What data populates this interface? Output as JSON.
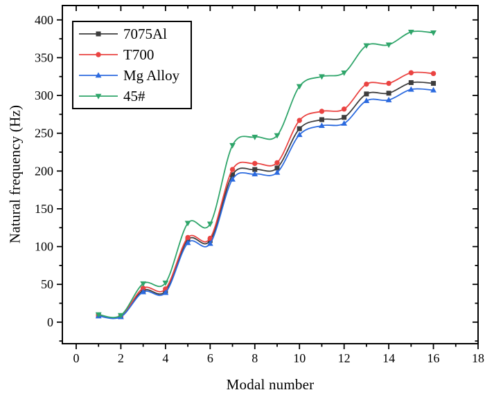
{
  "chart_data": {
    "type": "line",
    "title": "",
    "xlabel": "Modal number",
    "ylabel": "Natural frequency (Hz)",
    "line_style": "smooth-spline",
    "grid": false,
    "axis_color": "#000000",
    "legend": {
      "position": "top-left",
      "border": true
    },
    "x": [
      1,
      2,
      3,
      4,
      5,
      6,
      7,
      8,
      9,
      10,
      11,
      12,
      13,
      14,
      15,
      16
    ],
    "series": [
      {
        "name": "7075Al",
        "color": "#3d3d3d",
        "marker": "square",
        "values": [
          9,
          8,
          42,
          41,
          109,
          108,
          195,
          202,
          204,
          256,
          268,
          271,
          302,
          303,
          317,
          316
        ]
      },
      {
        "name": "T700",
        "color": "#ea4341",
        "marker": "circle",
        "values": [
          9,
          8,
          45,
          44,
          112,
          111,
          202,
          210,
          211,
          267,
          279,
          282,
          315,
          316,
          330,
          329
        ]
      },
      {
        "name": "Mg Alloy",
        "color": "#2b6adf",
        "marker": "triangle-up",
        "values": [
          8,
          7,
          40,
          39,
          105,
          104,
          189,
          196,
          198,
          248,
          260,
          263,
          293,
          294,
          308,
          307
        ]
      },
      {
        "name": "45#",
        "color": "#2fa56a",
        "marker": "triangle-down",
        "values": [
          10,
          9,
          51,
          52,
          131,
          130,
          234,
          245,
          247,
          312,
          325,
          330,
          366,
          367,
          384,
          383
        ]
      }
    ],
    "x_axis": {
      "min": -0.62,
      "max": 18,
      "major_tick_start": 0,
      "major_tick_end": 18,
      "major_tick_step": 2,
      "minor_tick_step": 1
    },
    "y_axis": {
      "min": -28.5,
      "max": 419,
      "major_tick_start": 0,
      "major_tick_end": 400,
      "major_tick_step": 50,
      "minor_tick_step": 25
    }
  }
}
